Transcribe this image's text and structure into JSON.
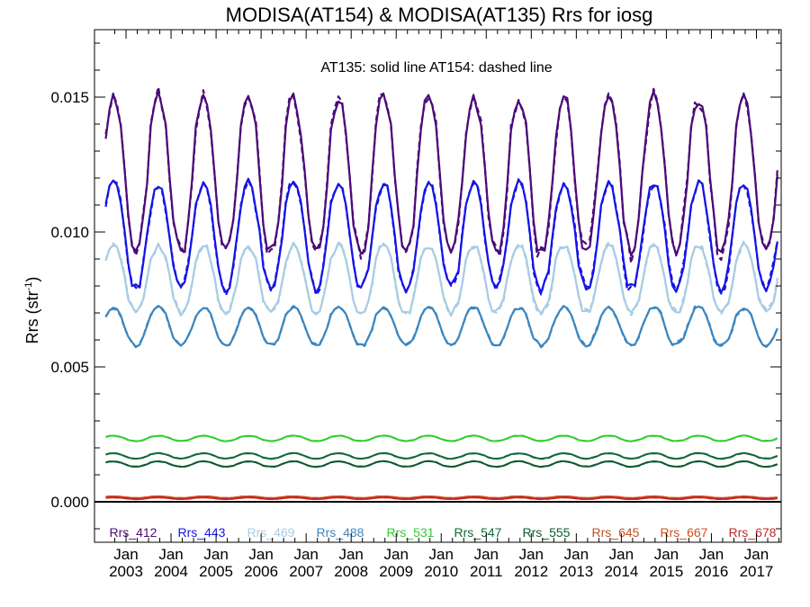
{
  "chart_data": {
    "type": "line",
    "title": "MODISA(AT154) & MODISA(AT135)  Rrs for iosg",
    "ylabel": "Rrs (str",
    "ylabel_sup": "-1",
    "ylabel_close": ")",
    "annotation": "AT135: solid line   AT154: dashed line",
    "ylim": [
      -0.0015,
      0.0175
    ],
    "xlim": [
      2002.3,
      2017.55
    ],
    "yticks": [
      "0.000",
      "0.005",
      "0.010",
      "0.015"
    ],
    "ytick_values": [
      0.0,
      0.005,
      0.01,
      0.015
    ],
    "xtick_top": "Jan",
    "xticks": [
      "2003",
      "2004",
      "2005",
      "2006",
      "2007",
      "2008",
      "2009",
      "2010",
      "2011",
      "2012",
      "2013",
      "2014",
      "2015",
      "2016",
      "2017"
    ],
    "grid": false,
    "zero_line": true,
    "legend_position": "bottom",
    "series": [
      {
        "name": "Rrs_412",
        "color": "#4b0a78",
        "min": 0.0092,
        "max": 0.015,
        "phase": 0.72,
        "width": 2.2
      },
      {
        "name": "Rrs_443",
        "color": "#1414e6",
        "min": 0.0079,
        "max": 0.0118,
        "phase": 0.72,
        "width": 2.2
      },
      {
        "name": "Rrs_469",
        "color": "#a8cce4",
        "min": 0.007,
        "max": 0.0095,
        "phase": 0.72,
        "width": 2.2
      },
      {
        "name": "Rrs_488",
        "color": "#3b86c0",
        "min": 0.0058,
        "max": 0.0072,
        "phase": 0.72,
        "width": 2.2
      },
      {
        "name": "Rrs_531",
        "color": "#33cc33",
        "min": 0.00225,
        "max": 0.00245,
        "phase": 0.72,
        "width": 2.0
      },
      {
        "name": "Rrs_547",
        "color": "#0f6b36",
        "min": 0.0016,
        "max": 0.0018,
        "phase": 0.72,
        "width": 2.0
      },
      {
        "name": "Rrs_555",
        "color": "#0d5a2e",
        "min": 0.0013,
        "max": 0.0015,
        "phase": 0.72,
        "width": 2.0
      },
      {
        "name": "Rrs_645",
        "color": "#c0502a",
        "min": 0.00012,
        "max": 0.00018,
        "phase": 0.72,
        "width": 2.0
      },
      {
        "name": "Rrs_667",
        "color": "#d2501c",
        "min": 0.00014,
        "max": 0.0002,
        "phase": 0.72,
        "width": 2.0
      },
      {
        "name": "Rrs_678",
        "color": "#c02828",
        "min": 0.0001,
        "max": 0.00016,
        "phase": 0.72,
        "width": 2.0
      }
    ]
  }
}
